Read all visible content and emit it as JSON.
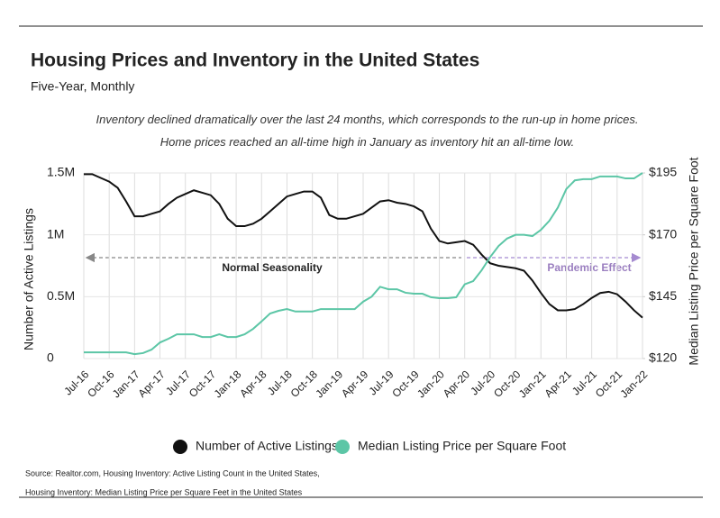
{
  "chart_data": {
    "type": "line",
    "title": "Housing Prices and Inventory in the United States",
    "subtitle": "Five-Year, Monthly",
    "description": "Inventory declined dramatically over the last 24 months, which corresponds to the run-up in home prices. Home prices reached an all-time high in January as inventory hit an all-time low.",
    "ylabel": "Number of Active Listings",
    "y2label": "Median Listing Price per Square Foot",
    "categories": [
      "Jul-16",
      null,
      null,
      "Oct-16",
      null,
      null,
      "Jan-17",
      null,
      null,
      "Apr-17",
      null,
      null,
      "Jul-17",
      null,
      null,
      "Oct-17",
      null,
      null,
      "Jan-18",
      null,
      null,
      "Apr-18",
      null,
      null,
      "Jul-18",
      null,
      null,
      "Oct-18",
      null,
      null,
      "Jan-19",
      null,
      null,
      "Apr-19",
      null,
      null,
      "Jul-19",
      null,
      null,
      "Oct-19",
      null,
      null,
      "Jan-20",
      null,
      null,
      "Apr-20",
      null,
      null,
      "Jul-20",
      null,
      null,
      "Oct-20",
      null,
      null,
      "Jan-21",
      null,
      null,
      "Apr-21",
      null,
      null,
      "Jul-21",
      null,
      null,
      "Oct-21",
      null,
      null,
      "Jan-22"
    ],
    "series": [
      {
        "name": "Number of Active Listings",
        "color": "#111111",
        "values": [
          1490000,
          1490000,
          1460000,
          1430000,
          1380000,
          1270000,
          1150000,
          1150000,
          1170000,
          1190000,
          1250000,
          1300000,
          1330000,
          1360000,
          1340000,
          1320000,
          1250000,
          1130000,
          1070000,
          1070000,
          1090000,
          1130000,
          1190000,
          1250000,
          1310000,
          1330000,
          1350000,
          1350000,
          1300000,
          1160000,
          1130000,
          1130000,
          1150000,
          1170000,
          1220000,
          1270000,
          1280000,
          1260000,
          1250000,
          1230000,
          1190000,
          1050000,
          950000,
          930000,
          940000,
          950000,
          920000,
          840000,
          770000,
          750000,
          740000,
          730000,
          710000,
          630000,
          530000,
          440000,
          390000,
          390000,
          400000,
          440000,
          490000,
          530000,
          540000,
          520000,
          460000,
          390000,
          330000
        ]
      },
      {
        "name": "Median Listing Price per Square Foot",
        "color": "#5cc6a6",
        "axis": "y2",
        "values": [
          122.5,
          122.5,
          122.5,
          122.5,
          122.5,
          122.5,
          121.8,
          122.2,
          123.6,
          126.5,
          128,
          129.8,
          129.8,
          129.8,
          128.7,
          128.7,
          129.8,
          128.7,
          128.7,
          129.8,
          132,
          135,
          138.2,
          139.3,
          140,
          139,
          139,
          139,
          140,
          140,
          140,
          140,
          140,
          143,
          145,
          149,
          148,
          148,
          146.6,
          146.2,
          146.2,
          144.8,
          144.4,
          144.4,
          144.8,
          150,
          151.3,
          155.7,
          161,
          165.5,
          168.5,
          170,
          170,
          169.5,
          172,
          175.7,
          181,
          188.5,
          192,
          192.5,
          192.5,
          193.6,
          193.6,
          193.6,
          192.8,
          192.8,
          195
        ]
      }
    ],
    "ylim": [
      0,
      1500000
    ],
    "yticks": [
      0,
      {
        "value": 500000,
        "label": "0.5M"
      },
      {
        "value": 1000000,
        "label": "1M"
      },
      {
        "value": 1500000,
        "label": "1.5M"
      }
    ],
    "y2lim": [
      120,
      195
    ],
    "y2ticks": [
      {
        "value": 120,
        "label": "$120"
      },
      {
        "value": 145,
        "label": "$145"
      },
      {
        "value": 170,
        "label": "$170"
      },
      {
        "value": 195,
        "label": "$195"
      }
    ],
    "grid": true,
    "annotations": [
      "Normal Seasonality",
      "Pandemic Effect"
    ],
    "source": [
      "Source:  Realtor.com, Housing Inventory: Active Listing Count in the United States,",
      "Housing Inventory: Median Listing Price per Square Feet in the United States"
    ]
  }
}
